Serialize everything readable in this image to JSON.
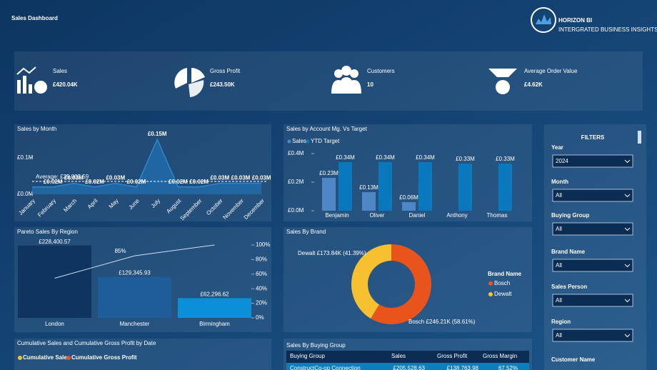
{
  "header": {
    "title": "Sales Dashboard",
    "logo": "HORIZON BI",
    "tagline": "INTERGRATED BUSINESS INSIGHTS"
  },
  "kpis": [
    {
      "label": "Sales",
      "value": "£420.04K"
    },
    {
      "label": "Gross Profit",
      "value": "£243.50K"
    },
    {
      "label": "Customers",
      "value": "10"
    },
    {
      "label": "Average Order Value",
      "value": "£4.62K"
    }
  ],
  "chart_data": [
    {
      "type": "area",
      "title": "Sales by Month",
      "categories": [
        "January",
        "February",
        "March",
        "April",
        "May",
        "June",
        "July",
        "August",
        "September",
        "October",
        "November",
        "December"
      ],
      "values": [
        0.02,
        0.02,
        0.03,
        0.02,
        0.03,
        0.02,
        0.15,
        0.02,
        0.02,
        0.03,
        0.03,
        0.03
      ],
      "value_labels": [
        null,
        "£0.02M",
        "£0.03M",
        "£0.02M",
        "£0.03M",
        "£0.02M",
        "£0.15M",
        "£0.02M",
        "£0.02M",
        "£0.03M",
        "£0.03M",
        "£0.03M"
      ],
      "color": "#1f6fb0",
      "ylim": [
        0,
        0.16
      ],
      "yticks": [
        {
          "value": 0,
          "label": "£0.0M"
        },
        {
          "value": 0.1,
          "label": "£0.1M"
        }
      ],
      "annotations": [
        {
          "text": "Average: £35,003.59",
          "value": 0.03500359
        }
      ]
    },
    {
      "type": "bar",
      "title": "Sales by Account Mg. Vs Target",
      "categories": [
        "Benjamin",
        "Oliver",
        "Daniel",
        "Anthony",
        "Thomas"
      ],
      "series": [
        {
          "name": "Sales",
          "color": "#4f86c6",
          "values": [
            0.23,
            0.13,
            0.06,
            null,
            null
          ],
          "value_labels": [
            "£0.23M",
            "£0.13M",
            "£0.06M",
            null,
            null
          ]
        },
        {
          "name": "YTD Target",
          "color": "#0a78bd",
          "values": [
            0.34,
            0.34,
            0.34,
            0.33,
            0.33
          ],
          "value_labels": [
            "£0.34M",
            "£0.34M",
            "£0.34M",
            "£0.33M",
            "£0.33M"
          ]
        }
      ],
      "ylim": [
        0,
        0.4
      ],
      "yticks": [
        {
          "value": 0,
          "label": "£0.0M"
        },
        {
          "value": 0.2,
          "label": "£0.2M"
        },
        {
          "value": 0.4,
          "label": "£0.4M"
        }
      ]
    },
    {
      "type": "pareto",
      "title": "Pareto Sales By Region",
      "categories": [
        "London",
        "Manchester",
        "Birmingham"
      ],
      "series": [
        {
          "color": "#1e5d99",
          "values": [
            228400.57,
            129345.93,
            62296.62
          ],
          "value_labels": [
            "£228,400.57",
            "£129,345.93",
            "£62,296.62"
          ],
          "bar_colors": [
            "#0f3460",
            "#1e5d99",
            "#0b8fd6"
          ]
        },
        {
          "type": "line",
          "axis": "y2",
          "color": "#cfe0f0",
          "values": [
            54.38,
            85.17,
            100
          ],
          "value_labels": [
            null,
            "85%",
            null
          ]
        }
      ],
      "ylim": [
        0,
        230000
      ],
      "y2lim": [
        0,
        100
      ],
      "y2ticks": [
        {
          "value": 0,
          "label": "0%"
        },
        {
          "value": 20,
          "label": "20%"
        },
        {
          "value": 40,
          "label": "40%"
        },
        {
          "value": 60,
          "label": "60%"
        },
        {
          "value": 80,
          "label": "80%"
        },
        {
          "value": 100,
          "label": "100%"
        }
      ]
    },
    {
      "type": "pie",
      "title": "Sales By Brand",
      "donut": true,
      "categories": [
        "Bosch",
        "Dewalt"
      ],
      "values": [
        246.21,
        173.84
      ],
      "value_labels": [
        "Bosch £246.21K (58.61%)",
        "Dewalt £173.84K (41.39%)"
      ],
      "colors": [
        "#e8541c",
        "#f6c030"
      ],
      "legend_title": "Brand Name"
    },
    {
      "type": "line",
      "title": "Cumulative Sales and Cumulative Gross Profit by Date",
      "series": [
        {
          "name": "Cumulative Sales",
          "color": "#f6c030"
        },
        {
          "name": "Cumulative Gross Profit",
          "color": "#e8541c"
        }
      ]
    }
  ],
  "table": {
    "title": "Sales By Buying Group",
    "columns": [
      "Buying Group",
      "Sales",
      "Gross Profit",
      "Gross Margin"
    ],
    "rows": [
      [
        "ConstructCo-op Connection",
        "£205,528.63",
        "£138,763.98",
        "67.52%"
      ]
    ]
  },
  "filters": {
    "title": "FILTERS",
    "items": [
      {
        "label": "Year",
        "value": "2024"
      },
      {
        "label": "Month",
        "value": "All"
      },
      {
        "label": "Buying Group",
        "value": "All"
      },
      {
        "label": "Brand Name",
        "value": "All"
      },
      {
        "label": "Sales Person",
        "value": "All"
      },
      {
        "label": "Region",
        "value": "All"
      },
      {
        "label": "Customer Name"
      }
    ]
  }
}
